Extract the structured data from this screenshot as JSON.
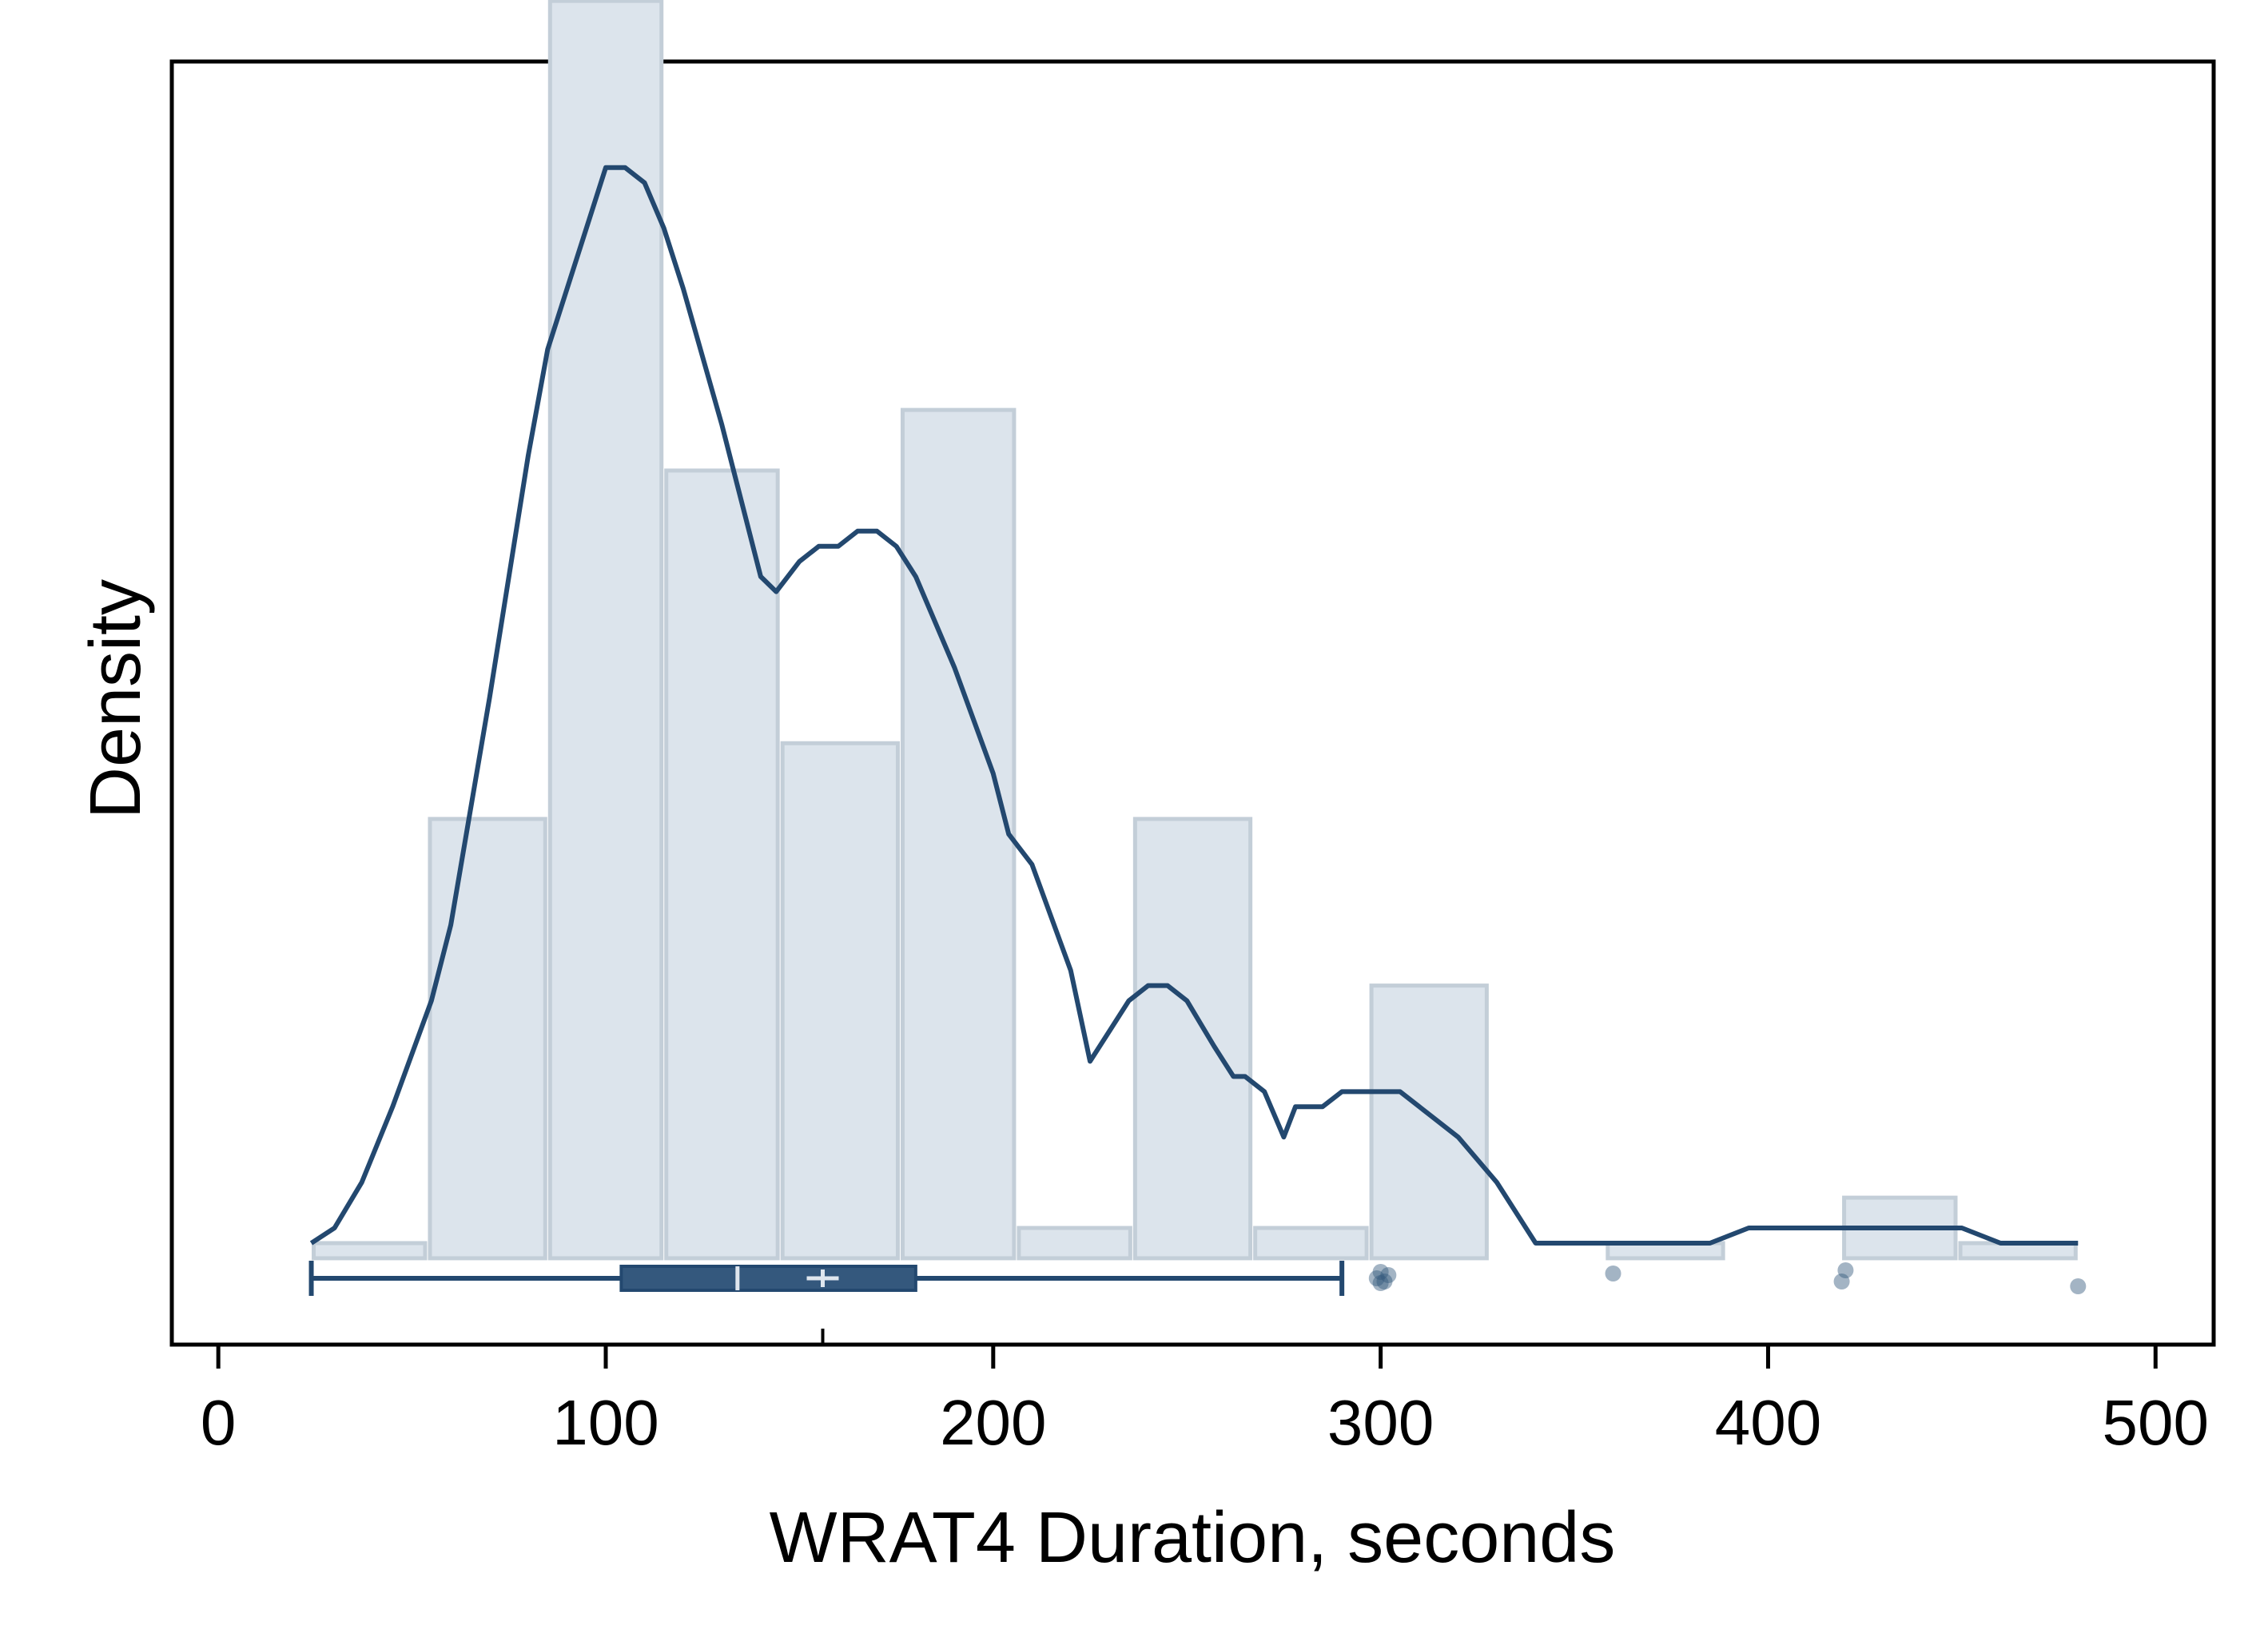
{
  "chart_data": {
    "type": "histogram",
    "xlabel": "WRAT4 Duration, seconds",
    "ylabel": "Density",
    "xlim": [
      -12,
      515
    ],
    "ylim": [
      -0.00057,
      0.0079
    ],
    "x_ticks": [
      0,
      100,
      200,
      300,
      400,
      500
    ],
    "y_ticks": [],
    "grid": false,
    "legend": "none",
    "colors": {
      "bar_fill": "#dce4ec",
      "bar_edge": "#c3ced8",
      "line": "#23486f",
      "box": "#34587d",
      "outlier": "#34587d"
    },
    "histogram": {
      "bins": [
        {
          "x0": 24,
          "x1": 54,
          "density": 0.0001
        },
        {
          "x0": 54,
          "x1": 85,
          "density": 0.0029
        },
        {
          "x0": 85,
          "x1": 115,
          "density": 0.0083
        },
        {
          "x0": 115,
          "x1": 145,
          "density": 0.0052
        },
        {
          "x0": 145,
          "x1": 176,
          "density": 0.0034
        },
        {
          "x0": 176,
          "x1": 206,
          "density": 0.0056
        },
        {
          "x0": 206,
          "x1": 236,
          "density": 0.0002
        },
        {
          "x0": 236,
          "x1": 267,
          "density": 0.0029
        },
        {
          "x0": 267,
          "x1": 297,
          "density": 0.0002
        },
        {
          "x0": 297,
          "x1": 328,
          "density": 0.0018
        },
        {
          "x0": 358,
          "x1": 389,
          "density": 0.0001
        },
        {
          "x0": 419,
          "x1": 449,
          "density": 0.0004
        },
        {
          "x0": 449,
          "x1": 480,
          "density": 0.0001
        }
      ]
    },
    "kde": {
      "x": [
        24,
        30,
        37,
        45,
        55,
        60,
        70,
        80,
        85,
        95,
        100,
        105,
        110,
        115,
        120,
        130,
        140,
        144,
        150,
        155,
        160,
        165,
        170,
        175,
        180,
        190,
        200,
        204,
        210,
        220,
        225,
        230,
        235,
        240,
        245,
        250,
        257,
        262,
        265,
        270,
        275,
        278,
        285,
        290,
        295,
        300,
        305,
        310,
        320,
        330,
        340,
        350,
        365,
        380,
        385,
        395,
        405,
        420,
        430,
        440,
        450,
        460,
        470,
        480
      ],
      "y": [
        0.0001,
        0.0002,
        0.0005,
        0.001,
        0.0017,
        0.0022,
        0.0037,
        0.0053,
        0.006,
        0.0068,
        0.0072,
        0.0072,
        0.0071,
        0.0068,
        0.0064,
        0.0055,
        0.0045,
        0.0044,
        0.0046,
        0.0047,
        0.0047,
        0.0048,
        0.0048,
        0.0047,
        0.0045,
        0.0039,
        0.0032,
        0.0028,
        0.0026,
        0.0019,
        0.0013,
        0.0015,
        0.0017,
        0.0018,
        0.0018,
        0.0017,
        0.0014,
        0.0012,
        0.0012,
        0.0011,
        0.0008,
        0.001,
        0.001,
        0.0011,
        0.0011,
        0.0011,
        0.0011,
        0.001,
        0.0008,
        0.0005,
        0.0001,
        0.0001,
        0.0001,
        0.0001,
        0.0001,
        0.0002,
        0.0002,
        0.0002,
        0.0002,
        0.0002,
        0.0002,
        0.0001,
        0.0001,
        0.0001
      ]
    },
    "boxplot": {
      "whisker_low": 24,
      "q1": 104,
      "median": 134,
      "mean": 156,
      "q3": 180,
      "whisker_high": 290,
      "outliers": [
        299,
        300,
        300,
        301,
        302,
        360,
        419,
        420,
        480
      ]
    }
  }
}
